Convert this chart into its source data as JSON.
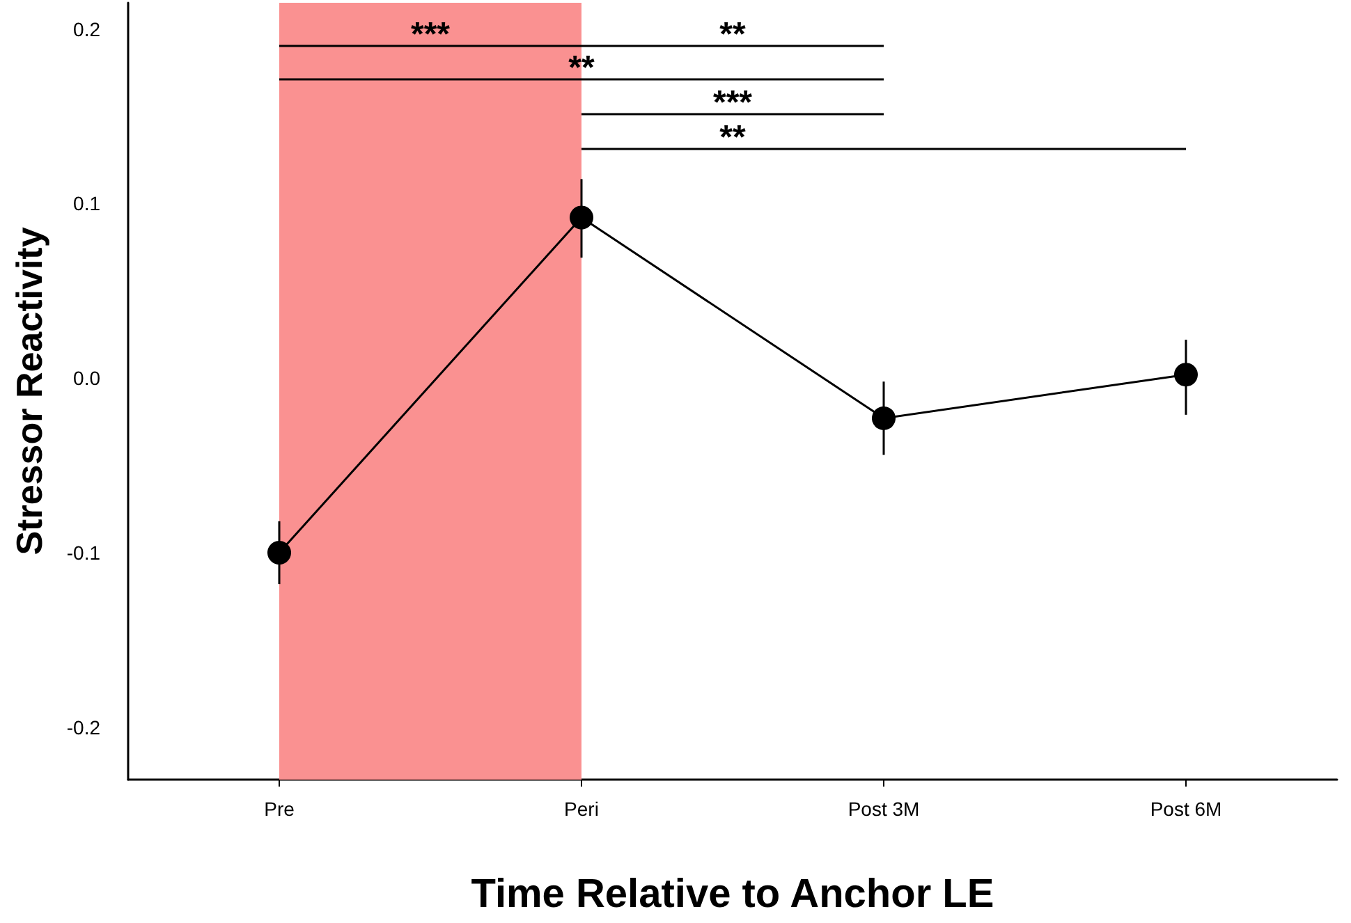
{
  "chart_data": {
    "type": "line",
    "xlabel": "Time Relative to Anchor LE",
    "ylabel": "Stressor Reactivity",
    "categories": [
      "Pre",
      "Peri",
      "Post 3M",
      "Post 6M"
    ],
    "series": [
      {
        "color": "#000000",
        "values": [
          -0.1,
          0.092,
          -0.023,
          0.002
        ],
        "errors": [
          [
            -0.118,
            -0.082
          ],
          [
            0.069,
            0.114
          ],
          [
            -0.044,
            -0.002
          ],
          [
            -0.021,
            0.022
          ]
        ]
      }
    ],
    "ylim": [
      -0.23,
      0.215
    ],
    "yticks": [
      -0.2,
      -0.1,
      {
        "value": 0,
        "label": "0.0"
      },
      0.1,
      0.2
    ],
    "bands": [
      {
        "axis": "x",
        "from": "Pre",
        "to": "Peri",
        "color": "#fa9191"
      }
    ],
    "annotations": [
      "***",
      "**",
      "**",
      "***",
      "**"
    ],
    "marker": "circle",
    "line_style": "solid",
    "grid": false
  }
}
